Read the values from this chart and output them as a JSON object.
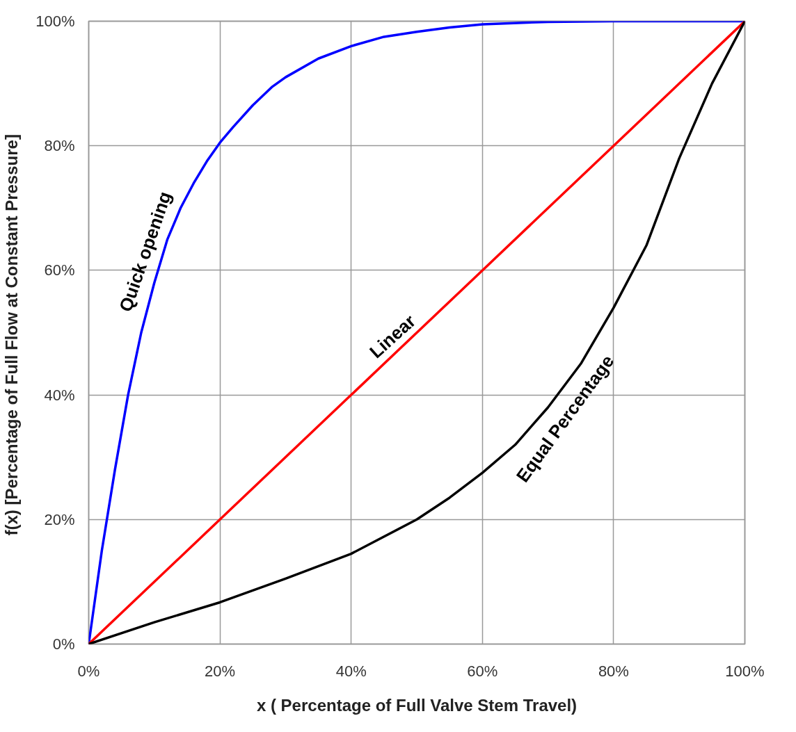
{
  "chart_data": {
    "type": "line",
    "xlabel": "x ( Percentage of Full Valve Stem Travel)",
    "ylabel": "f(x) [Percentage of Full Flow at Constant  Pressure]",
    "xlim": [
      0,
      100
    ],
    "ylim": [
      0,
      100
    ],
    "xticks": [
      {
        "value": 0,
        "label": "0%"
      },
      {
        "value": 20,
        "label": "20%"
      },
      {
        "value": 40,
        "label": "40%"
      },
      {
        "value": 60,
        "label": "60%"
      },
      {
        "value": 80,
        "label": "80%"
      },
      {
        "value": 100,
        "label": "100%"
      }
    ],
    "yticks": [
      {
        "value": 0,
        "label": "0%"
      },
      {
        "value": 20,
        "label": "20%"
      },
      {
        "value": 40,
        "label": "40%"
      },
      {
        "value": 60,
        "label": "60%"
      },
      {
        "value": 80,
        "label": "80%"
      },
      {
        "value": 100,
        "label": "100%"
      }
    ],
    "grid": true,
    "marker": "none",
    "line_style": "solid",
    "series": [
      {
        "name": "Quick opening",
        "color": "#0000ff",
        "x": [
          0,
          2,
          4,
          6,
          8,
          10,
          12,
          14,
          16,
          18,
          20,
          22,
          25,
          28,
          30,
          35,
          40,
          45,
          50,
          55,
          60,
          70,
          80,
          100
        ],
        "values": [
          0,
          15,
          28,
          40,
          50,
          58,
          65,
          70,
          74,
          77.5,
          80.5,
          83,
          86.5,
          89.5,
          91,
          94,
          96,
          97.5,
          98.3,
          99,
          99.5,
          99.9,
          100,
          100
        ]
      },
      {
        "name": "Linear",
        "color": "#ff0000",
        "x": [
          0,
          20,
          40,
          60,
          80,
          100
        ],
        "values": [
          0,
          20,
          40,
          60,
          80,
          100
        ]
      },
      {
        "name": "Equal Percentage",
        "color": "#000000",
        "x": [
          0,
          10,
          20,
          30,
          40,
          50,
          55,
          60,
          65,
          70,
          75,
          80,
          85,
          90,
          95,
          100
        ],
        "values": [
          0,
          3.5,
          6.7,
          10.5,
          14.5,
          20,
          23.5,
          27.5,
          32,
          38,
          45,
          54,
          64,
          78,
          90,
          100
        ]
      }
    ],
    "legend": false
  }
}
